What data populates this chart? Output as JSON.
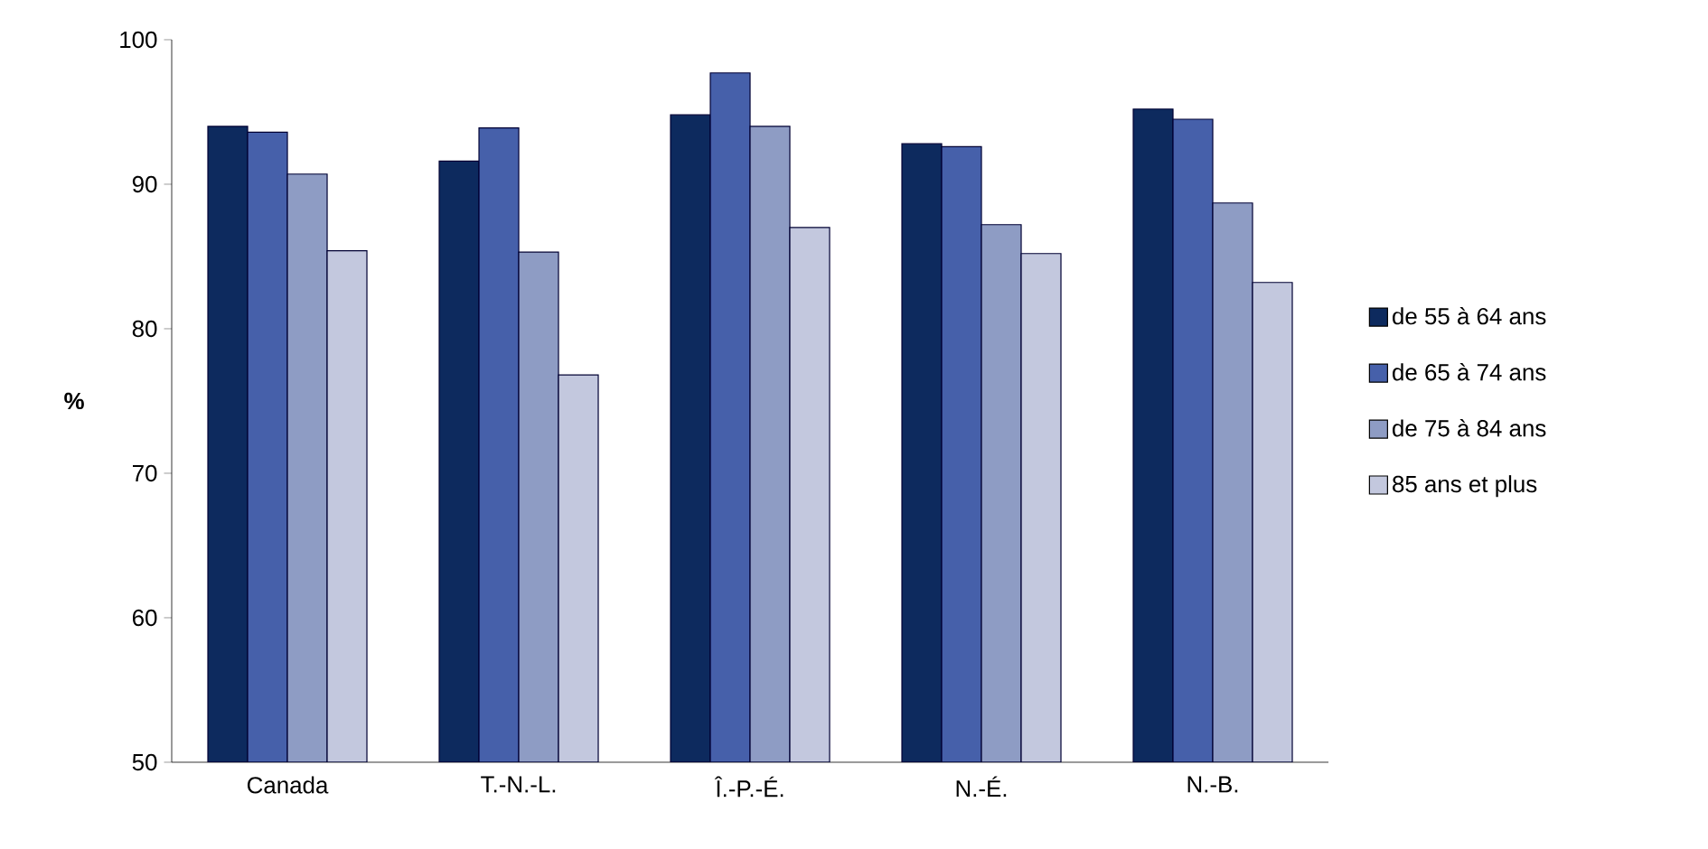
{
  "chart_data": {
    "type": "bar",
    "ylabel": "%",
    "categories": [
      "Canada",
      "T.-N.-L.",
      "Î.-P.-É.",
      "N.-É.",
      "N.-B."
    ],
    "series": [
      {
        "name": "de 55 à 64 ans",
        "color": "#0d2a5e",
        "values": [
          94.0,
          91.6,
          94.8,
          92.8,
          95.2
        ]
      },
      {
        "name": "de 65 à 74 ans",
        "color": "#4660aa",
        "values": [
          93.6,
          93.9,
          97.7,
          92.6,
          94.5
        ]
      },
      {
        "name": "de 75 à 84 ans",
        "color": "#8e9cc4",
        "values": [
          90.7,
          85.3,
          94.0,
          87.2,
          88.7
        ]
      },
      {
        "name": "85 ans et plus",
        "color": "#c3c8de",
        "values": [
          85.4,
          76.8,
          87.0,
          85.2,
          83.2
        ]
      }
    ],
    "ylim": [
      50,
      100
    ],
    "yticks": [
      50,
      60,
      70,
      80,
      90,
      100
    ],
    "grid": false,
    "legend": "right"
  }
}
